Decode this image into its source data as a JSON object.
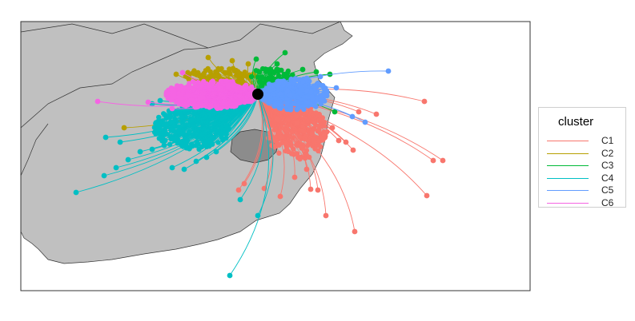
{
  "chart_data": {
    "type": "line",
    "title": "",
    "xlabel": "",
    "ylabel": "",
    "grid": false,
    "legend_position": "right",
    "legend": {
      "title": "cluster",
      "entries": [
        {
          "label": "C1",
          "color": "#F8766D"
        },
        {
          "label": "C2",
          "color": "#B79F00"
        },
        {
          "label": "C3",
          "color": "#00BA38"
        },
        {
          "label": "C4",
          "color": "#00BFC4"
        },
        {
          "label": "C5",
          "color": "#619CFF"
        },
        {
          "label": "C6",
          "color": "#F564E3"
        }
      ]
    },
    "origin_point": {
      "color": "#000000"
    },
    "basemap": {
      "land_color": "#C0C0C0",
      "region_color": "#8C8C8C",
      "border_color": "#333333"
    },
    "clusters": [
      {
        "name": "C1",
        "color": "#F8766D",
        "main_direction": "south-east",
        "endpoints": [
          [
            530,
            127
          ],
          [
            470,
            143
          ],
          [
            448,
            140
          ],
          [
            441,
            188
          ],
          [
            432,
            178
          ],
          [
            423,
            176
          ],
          [
            415,
            160
          ],
          [
            541,
            201
          ],
          [
            553,
            201
          ],
          [
            533,
            245
          ],
          [
            443,
            290
          ],
          [
            407,
            270
          ],
          [
            397,
            238
          ],
          [
            388,
            237
          ],
          [
            383,
            212
          ],
          [
            368,
            222
          ],
          [
            350,
            246
          ],
          [
            330,
            236
          ],
          [
            298,
            238
          ],
          [
            305,
            230
          ]
        ]
      },
      {
        "name": "C2",
        "color": "#B79F00",
        "main_direction": "north",
        "endpoints": [
          [
            220,
            93
          ],
          [
            155,
            160
          ],
          [
            260,
            72
          ],
          [
            290,
            76
          ],
          [
            310,
            80
          ]
        ]
      },
      {
        "name": "C3",
        "color": "#00BA38",
        "main_direction": "north-east",
        "endpoints": [
          [
            356,
            66
          ],
          [
            378,
            87
          ],
          [
            395,
            90
          ],
          [
            412,
            93
          ],
          [
            418,
            140
          ],
          [
            320,
            74
          ],
          [
            346,
            80
          ]
        ]
      },
      {
        "name": "C4",
        "color": "#00BFC4",
        "main_direction": "south-west",
        "endpoints": [
          [
            95,
            241
          ],
          [
            287,
            345
          ],
          [
            130,
            220
          ],
          [
            145,
            210
          ],
          [
            160,
            200
          ],
          [
            175,
            190
          ],
          [
            190,
            187
          ],
          [
            205,
            182
          ],
          [
            215,
            210
          ],
          [
            230,
            212
          ],
          [
            245,
            202
          ],
          [
            258,
            197
          ],
          [
            270,
            190
          ],
          [
            150,
            178
          ],
          [
            132,
            172
          ],
          [
            200,
            126
          ],
          [
            190,
            130
          ],
          [
            322,
            270
          ],
          [
            300,
            250
          ]
        ]
      },
      {
        "name": "C5",
        "color": "#619CFF",
        "main_direction": "east",
        "endpoints": [
          [
            485,
            89
          ],
          [
            456,
            153
          ],
          [
            440,
            146
          ],
          [
            420,
            110
          ],
          [
            400,
            96
          ],
          [
            383,
            98
          ]
        ]
      },
      {
        "name": "C6",
        "color": "#F564E3",
        "main_direction": "west",
        "endpoints": [
          [
            122,
            127
          ],
          [
            185,
            128
          ],
          [
            210,
            123
          ],
          [
            215,
            136
          ],
          [
            228,
            91
          ]
        ]
      }
    ]
  }
}
